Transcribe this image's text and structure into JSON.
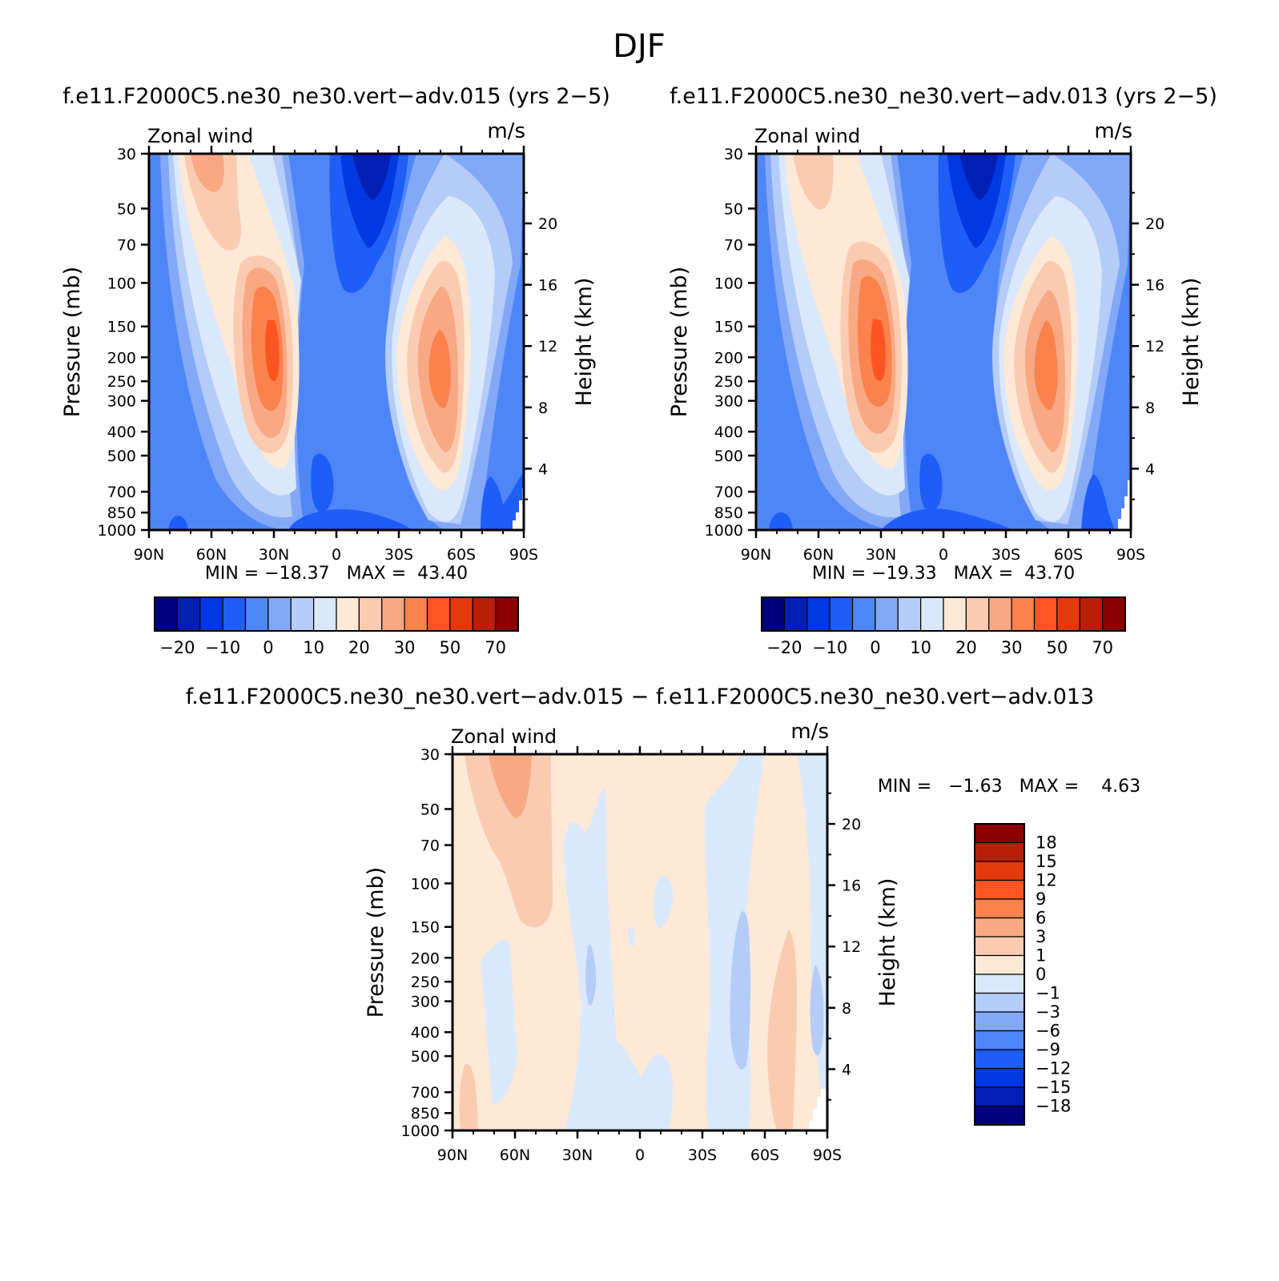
{
  "figure_title": "DJF",
  "colors": {
    "main_levels": [
      "#00007f",
      "#0020b5",
      "#0038e2",
      "#1f5df7",
      "#4f86f7",
      "#82a8f7",
      "#b5cbf8",
      "#dae8fb",
      "#fde9d6",
      "#fbcbb1",
      "#f9a884",
      "#f9824d",
      "#fc5423",
      "#e33a0b",
      "#b71f08",
      "#8b0000"
    ],
    "diff_levels": [
      "#00007f",
      "#0020b5",
      "#0038e2",
      "#1f5df7",
      "#4f86f7",
      "#82a8f7",
      "#b5cbf8",
      "#dae8fb",
      "#fde9d6",
      "#fbcbb1",
      "#f9a884",
      "#f9824d",
      "#fc5423",
      "#e33a0b",
      "#b71f08",
      "#8b0000"
    ]
  },
  "labels": {
    "left_label": "Zonal wind",
    "right_label": "m/s",
    "ylabel": "Pressure (mb)",
    "y2label": "Height (km)"
  },
  "axes": {
    "pressure_ticks": [
      "30",
      "50",
      "70",
      "100",
      "150",
      "200",
      "250",
      "300",
      "400",
      "500",
      "700",
      "850",
      "1000"
    ],
    "height_ticks": [
      "20",
      "16",
      "12",
      "8",
      "4"
    ],
    "lat_ticks": [
      "90N",
      "60N",
      "30N",
      "0",
      "30S",
      "60S",
      "90S"
    ]
  },
  "panels": [
    {
      "title": "f.e11.F2000C5.ne30_ne30.vert−adv.015 (yrs 2−5)",
      "stats": "MIN = −18.37   MAX =  43.40"
    },
    {
      "title": "f.e11.F2000C5.ne30_ne30.vert−adv.013 (yrs 2−5)",
      "stats": "MIN = −19.33   MAX =  43.70"
    },
    {
      "title": "f.e11.F2000C5.ne30_ne30.vert−adv.015 − f.e11.F2000C5.ne30_ne30.vert−adv.013",
      "stats": "MIN =   −1.63   MAX =    4.63"
    }
  ],
  "colorbar_main": {
    "labels": [
      "−20",
      "−10",
      "0",
      "10",
      "20",
      "30",
      "50",
      "70"
    ]
  },
  "colorbar_diff": {
    "labels": [
      "18",
      "15",
      "12",
      "9",
      "6",
      "3",
      "1",
      "0",
      "−1",
      "−3",
      "−6",
      "−9",
      "−12",
      "−15",
      "−18"
    ]
  },
  "chart_data": [
    {
      "type": "heatmap",
      "title": "f.e11.F2000C5.ne30_ne30.vert−adv.015 (yrs 2−5)",
      "variable": "Zonal wind",
      "units": "m/s",
      "xlabel": "",
      "ylabel": "Pressure (mb)",
      "y2label": "Height (km)",
      "xlim": [
        "90N",
        "90S"
      ],
      "ylim": [
        1000,
        30
      ],
      "yscale": "log",
      "contour_levels": [
        -25,
        -20,
        -15,
        -10,
        -5,
        0,
        5,
        10,
        15,
        20,
        25,
        30,
        40,
        50,
        60,
        70
      ],
      "min": -18.37,
      "max": 43.4,
      "features": [
        {
          "kind": "jet",
          "lat": -30,
          "pressure": 200,
          "peak": 43.4
        },
        {
          "kind": "jet",
          "lat": 50,
          "pressure": 200,
          "peak": 40
        },
        {
          "kind": "easterly",
          "lat": 15,
          "pressure": 30,
          "peak": -18.37
        }
      ]
    },
    {
      "type": "heatmap",
      "title": "f.e11.F2000C5.ne30_ne30.vert−adv.013 (yrs 2−5)",
      "variable": "Zonal wind",
      "units": "m/s",
      "xlabel": "",
      "ylabel": "Pressure (mb)",
      "y2label": "Height (km)",
      "xlim": [
        "90N",
        "90S"
      ],
      "ylim": [
        1000,
        30
      ],
      "yscale": "log",
      "contour_levels": [
        -25,
        -20,
        -15,
        -10,
        -5,
        0,
        5,
        10,
        15,
        20,
        25,
        30,
        40,
        50,
        60,
        70
      ],
      "min": -19.33,
      "max": 43.7,
      "features": [
        {
          "kind": "jet",
          "lat": -30,
          "pressure": 200,
          "peak": 43.7
        },
        {
          "kind": "jet",
          "lat": 50,
          "pressure": 220,
          "peak": 38
        },
        {
          "kind": "easterly",
          "lat": 15,
          "pressure": 30,
          "peak": -19.33
        }
      ]
    },
    {
      "type": "heatmap",
      "title": "f.e11.F2000C5.ne30_ne30.vert−adv.015 − f.e11.F2000C5.ne30_ne30.vert−adv.013",
      "variable": "Zonal wind",
      "units": "m/s",
      "xlabel": "",
      "ylabel": "Pressure (mb)",
      "y2label": "Height (km)",
      "xlim": [
        "90N",
        "90S"
      ],
      "ylim": [
        1000,
        30
      ],
      "yscale": "log",
      "contour_levels": [
        -18,
        -15,
        -12,
        -9,
        -6,
        -3,
        -1,
        0,
        1,
        3,
        6,
        9,
        12,
        15,
        18
      ],
      "min": -1.63,
      "max": 4.63
    }
  ]
}
